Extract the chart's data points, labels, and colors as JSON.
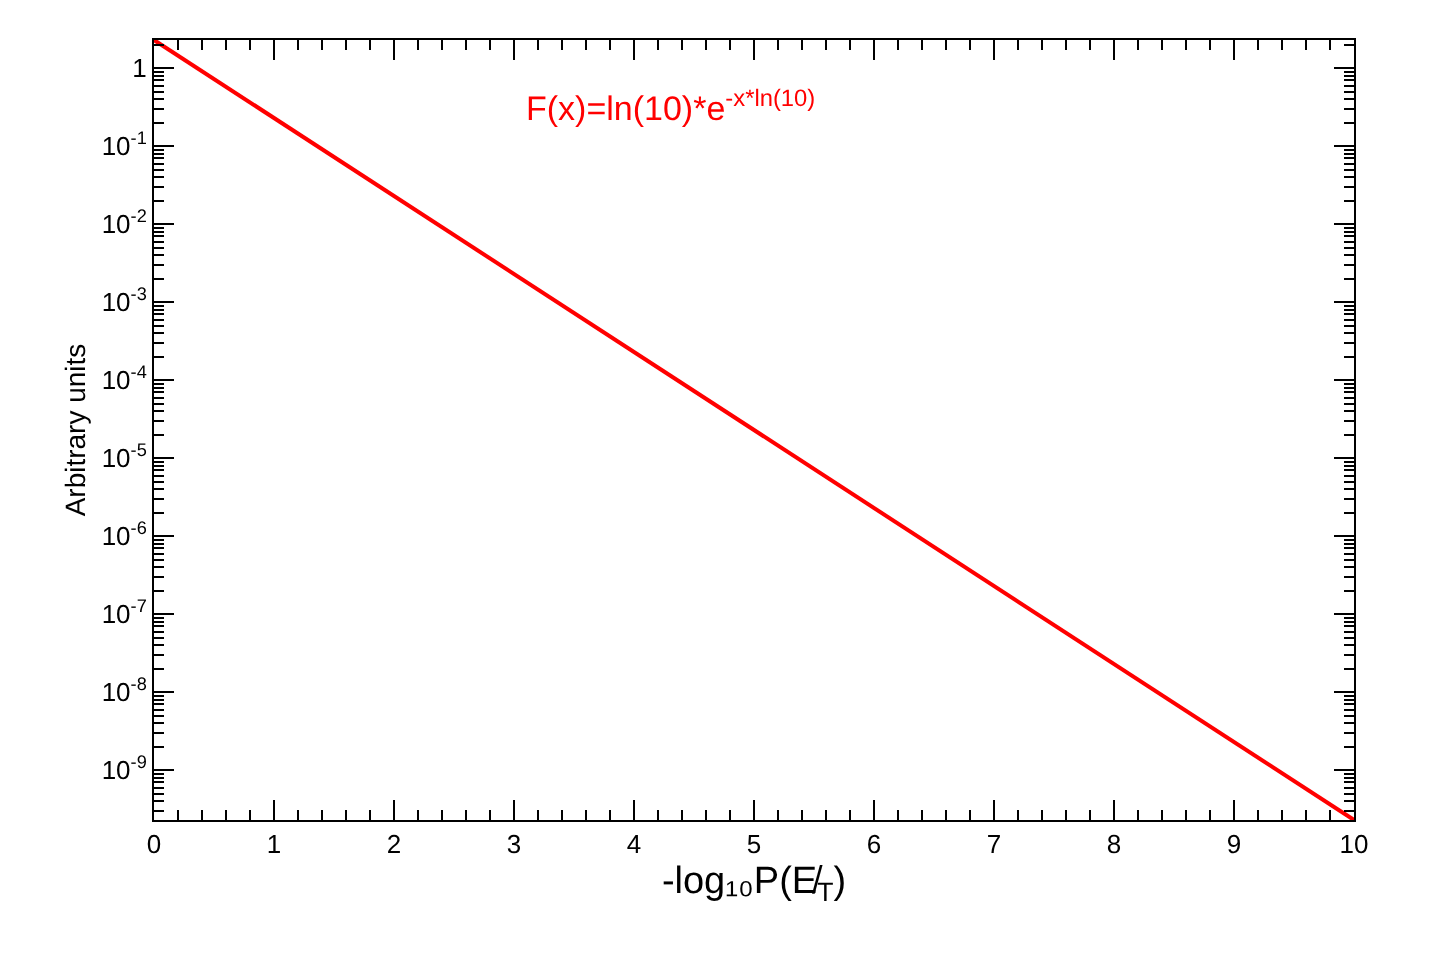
{
  "chart_data": {
    "type": "line",
    "xlabel": "-log₁₀P(E̸$_{T}$)",
    "ylabel": "Arbitrary units",
    "annotations": [
      "F(x)=ln(10)*e$^{-x*ln(10)}$"
    ],
    "log": "y",
    "marker": "none",
    "line_style": "solid",
    "xlim": [
      0,
      10
    ],
    "xticks": [
      0,
      1,
      2,
      3,
      4,
      5,
      6,
      7,
      8,
      9,
      10
    ],
    "ylim": [
      2.3e-10,
      2.3
    ],
    "yticks": [
      1,
      {
        "value": 0.1,
        "label": "10$^{-1}$"
      },
      {
        "value": 0.01,
        "label": "10$^{-2}$"
      },
      {
        "value": 0.001,
        "label": "10$^{-3}$"
      },
      {
        "value": 0.0001,
        "label": "10$^{-4}$"
      },
      {
        "value": 1e-05,
        "label": "10$^{-5}$"
      },
      {
        "value": 1e-06,
        "label": "10$^{-6}$"
      },
      {
        "value": 1e-07,
        "label": "10$^{-7}$"
      },
      {
        "value": 1e-08,
        "label": "10$^{-8}$"
      },
      {
        "value": 1e-09,
        "label": "10$^{-9}$"
      }
    ],
    "series": [
      {
        "color": "#ff0000",
        "x": [
          0,
          10
        ],
        "values": [
          2.3,
          2.3e-10
        ]
      }
    ]
  }
}
